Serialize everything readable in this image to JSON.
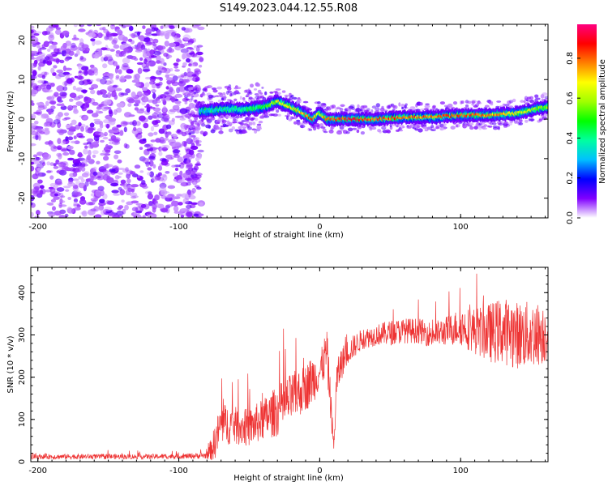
{
  "title": "S149.2023.044.12.55.R08",
  "chart_data": [
    {
      "type": "heatmap",
      "name": "spectrogram",
      "xlabel": "Height of straight line (km)",
      "ylabel": "Frequency (Hz)",
      "xlim": [
        -205,
        162
      ],
      "ylim": [
        -25,
        24
      ],
      "xticks": [
        -200,
        -100,
        0,
        100
      ],
      "yticks": [
        -20,
        -10,
        0,
        10,
        20
      ],
      "colorbar": {
        "label": "Normalized spectral amplitude",
        "range": [
          0.0,
          0.97
        ],
        "ticks": [
          0.0,
          0.2,
          0.4,
          0.6,
          0.8
        ]
      },
      "ridge": {
        "x": [
          -85,
          -70,
          -55,
          -40,
          -30,
          -20,
          -12,
          -5,
          0,
          5,
          20,
          40,
          60,
          80,
          100,
          120,
          140,
          160
        ],
        "freq": [
          2,
          2.5,
          2.5,
          3,
          4.5,
          3,
          1.5,
          0,
          1.5,
          0,
          0,
          0,
          0.5,
          0.5,
          1,
          1,
          1.5,
          3
        ],
        "amplitude": [
          0.3,
          0.35,
          0.4,
          0.5,
          0.7,
          0.7,
          0.8,
          0.9,
          0.6,
          0.9,
          0.95,
          0.9,
          0.85,
          0.85,
          0.9,
          0.85,
          0.7,
          0.6
        ]
      },
      "noise_region_x": [
        -205,
        -88
      ],
      "noise_amplitude": 0.1
    },
    {
      "type": "line",
      "name": "snr",
      "xlabel": "Height of straight line (km)",
      "ylabel": "SNR (10 * v/v)",
      "xlim": [
        -205,
        162
      ],
      "ylim": [
        0,
        460
      ],
      "xticks": [
        -200,
        -100,
        0,
        100
      ],
      "yticks": [
        0,
        100,
        200,
        300,
        400
      ],
      "color": "#ee3333",
      "series": [
        {
          "name": "SNR",
          "x": [
            -205,
            -180,
            -150,
            -120,
            -95,
            -80,
            -75,
            -70,
            -60,
            -50,
            -40,
            -30,
            -20,
            -10,
            -5,
            0,
            5,
            8,
            10,
            12,
            15,
            20,
            30,
            40,
            50,
            60,
            70,
            80,
            90,
            100,
            110,
            120,
            130,
            140,
            150,
            162
          ],
          "y": [
            12,
            12,
            12,
            12,
            13,
            15,
            40,
            90,
            85,
            80,
            100,
            120,
            150,
            175,
            195,
            210,
            260,
            130,
            30,
            190,
            230,
            260,
            290,
            300,
            305,
            310,
            310,
            300,
            310,
            320,
            310,
            305,
            310,
            300,
            300,
            305
          ],
          "noise": [
            6,
            6,
            6,
            6,
            6,
            8,
            40,
            50,
            45,
            45,
            50,
            60,
            60,
            55,
            60,
            40,
            60,
            40,
            20,
            45,
            40,
            30,
            25,
            25,
            30,
            30,
            30,
            30,
            35,
            45,
            55,
            70,
            80,
            80,
            80,
            70
          ]
        }
      ]
    }
  ]
}
